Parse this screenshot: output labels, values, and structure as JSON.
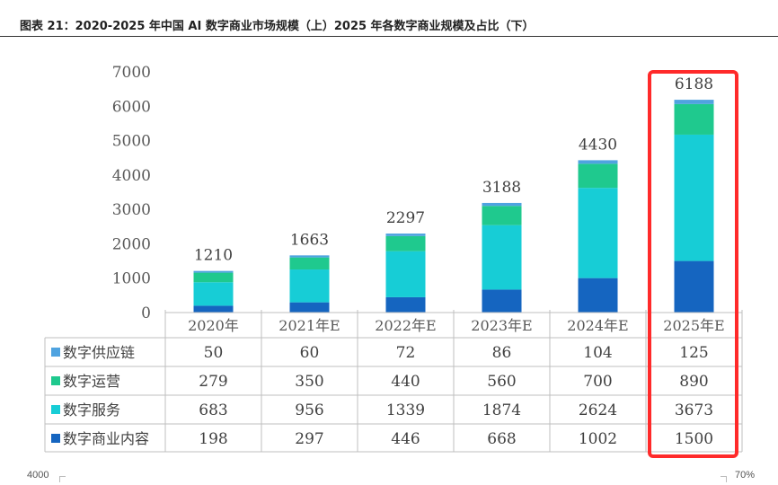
{
  "header": {
    "title": "图表 21：2020-2025 年中国 AI 数字商业市场规模（上）2025 年各数字商业规模及占比（下）"
  },
  "footer": {
    "left_value": "4000",
    "right_value": "70%"
  },
  "chart_data": {
    "type": "bar",
    "stacked": true,
    "categories": [
      "2020年",
      "2021年E",
      "2022年E",
      "2023年E",
      "2024年E",
      "2025年E"
    ],
    "totals": [
      "1210",
      "1663",
      "2297",
      "3188",
      "4430",
      "6188"
    ],
    "ylim": [
      0,
      7000
    ],
    "yticks": [
      "0",
      "1000",
      "2000",
      "3000",
      "4000",
      "5000",
      "6000",
      "7000"
    ],
    "series": [
      {
        "name": "数字商业内容",
        "color": "#1565C0",
        "values": [
          198,
          297,
          446,
          668,
          1002,
          1500
        ]
      },
      {
        "name": "数字服务",
        "color": "#17CDD6",
        "values": [
          683,
          956,
          1339,
          1874,
          2624,
          3673
        ]
      },
      {
        "name": "数字运营",
        "color": "#1FC98E",
        "values": [
          279,
          350,
          440,
          560,
          700,
          890
        ]
      },
      {
        "name": "数字供应链",
        "color": "#4FA3E0",
        "values": [
          50,
          60,
          72,
          86,
          104,
          125
        ]
      }
    ],
    "table_order": [
      3,
      2,
      1,
      0
    ],
    "highlight_category": "2025年E",
    "highlight_color": "#FF2A2A",
    "grid": false
  }
}
